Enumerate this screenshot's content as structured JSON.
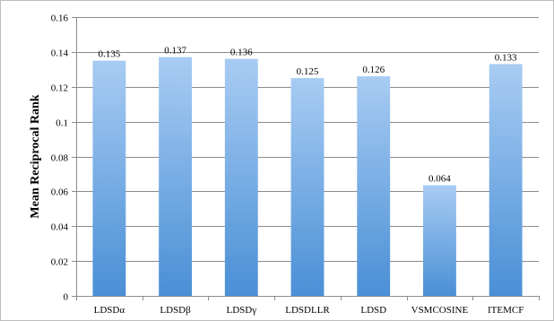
{
  "chart_data": {
    "type": "bar",
    "title": "",
    "xlabel": "",
    "ylabel": "Mean Reciprocal Rank",
    "categories": [
      "LDSDα",
      "LDSDβ",
      "LDSDγ",
      "LDSDLLR",
      "LDSD",
      "VSMCOSINE",
      "ITEMCF"
    ],
    "values": [
      0.135,
      0.137,
      0.136,
      0.125,
      0.126,
      0.0635,
      0.133
    ],
    "data_labels": [
      "0.135",
      "0.137",
      "0.136",
      "0.125",
      "0.126",
      "0.064",
      "0.133"
    ],
    "y_ticks": [
      0,
      0.02,
      0.04,
      0.06,
      0.08,
      0.1,
      0.12,
      0.14,
      0.16
    ],
    "y_tick_labels": [
      "0",
      "0.02",
      "0.04",
      "0.06",
      "0.08",
      "0.1",
      "0.12",
      "0.14",
      "0.16"
    ],
    "ylim": [
      0,
      0.16
    ],
    "grid": true,
    "legend": "none",
    "colors": {
      "bar_top": "#a8ccf3",
      "bar_bottom": "#4a8fd6",
      "grid": "#8c8c8c"
    }
  }
}
